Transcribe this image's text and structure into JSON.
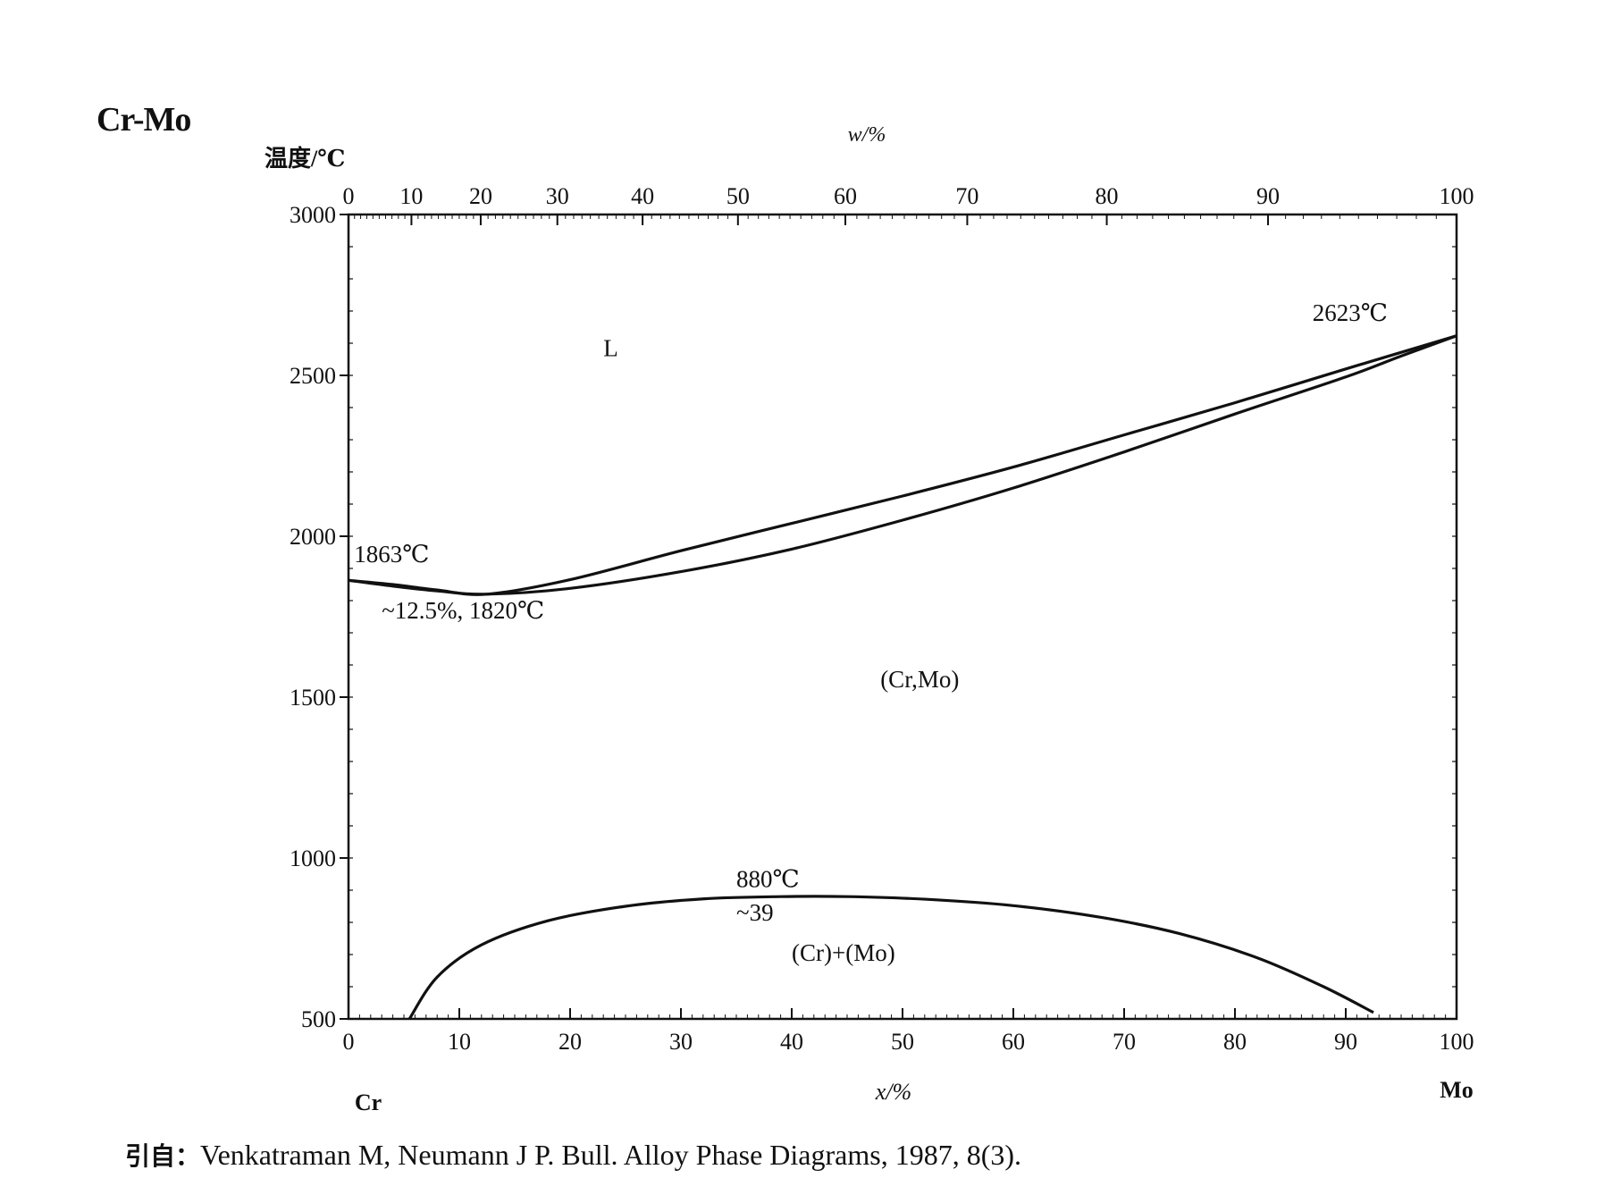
{
  "title": "Cr-Mo",
  "source": {
    "prefix": "引自：",
    "text": "Venkatraman M, Neumann J P. Bull.  Alloy Phase Diagrams, 1987, 8(3)."
  },
  "chart_data": {
    "type": "line",
    "y_axis": {
      "label": "温度/℃",
      "ylim": [
        500,
        3000
      ],
      "ticks": [
        500,
        1000,
        1500,
        2000,
        2500,
        3000
      ]
    },
    "x_axis_bottom": {
      "label": "x/%",
      "xlim": [
        0,
        100
      ],
      "ticks": [
        0,
        10,
        20,
        30,
        40,
        50,
        60,
        70,
        80,
        90,
        100
      ],
      "left_end_label": "Cr",
      "right_end_label": "Mo"
    },
    "x_axis_top": {
      "label": "w/%",
      "ticks": [
        0,
        10,
        20,
        30,
        40,
        50,
        60,
        70,
        80,
        90,
        100
      ]
    },
    "grid": false,
    "series": [
      {
        "x": [
          0,
          4,
          8,
          12.5,
          20,
          30,
          40,
          50,
          60,
          70,
          80,
          90,
          100
        ],
        "y": [
          1863,
          1850,
          1833,
          1820,
          1865,
          1955,
          2040,
          2125,
          2215,
          2315,
          2415,
          2520,
          2623
        ]
      },
      {
        "x": [
          0,
          4,
          8,
          12.5,
          20,
          30,
          40,
          50,
          60,
          70,
          80,
          90,
          95,
          100
        ],
        "y": [
          1863,
          1845,
          1830,
          1820,
          1838,
          1890,
          1960,
          2050,
          2150,
          2262,
          2380,
          2495,
          2560,
          2623
        ]
      },
      {
        "x": [
          5.5,
          8,
          12,
          18,
          25,
          32,
          39,
          45,
          52,
          60,
          68,
          75,
          82,
          88,
          92.5
        ],
        "y": [
          500,
          630,
          730,
          805,
          850,
          873,
          880,
          880,
          872,
          852,
          815,
          765,
          690,
          600,
          520
        ]
      }
    ],
    "annotations": [
      {
        "text": "L",
        "x": 23,
        "y": 2560
      },
      {
        "text": "(Cr,Mo)",
        "x": 48,
        "y": 1530
      },
      {
        "text": "(Cr)+(Mo)",
        "x": 40,
        "y": 680
      },
      {
        "text": "1863℃",
        "x": 0.5,
        "y": 1920
      },
      {
        "text": "~12.5%, 1820℃",
        "x": 3,
        "y": 1745
      },
      {
        "text": "2623℃",
        "x": 87,
        "y": 2670
      },
      {
        "text": "880℃",
        "x": 35,
        "y": 910
      },
      {
        "text": "~39",
        "x": 35,
        "y": 805
      }
    ]
  }
}
